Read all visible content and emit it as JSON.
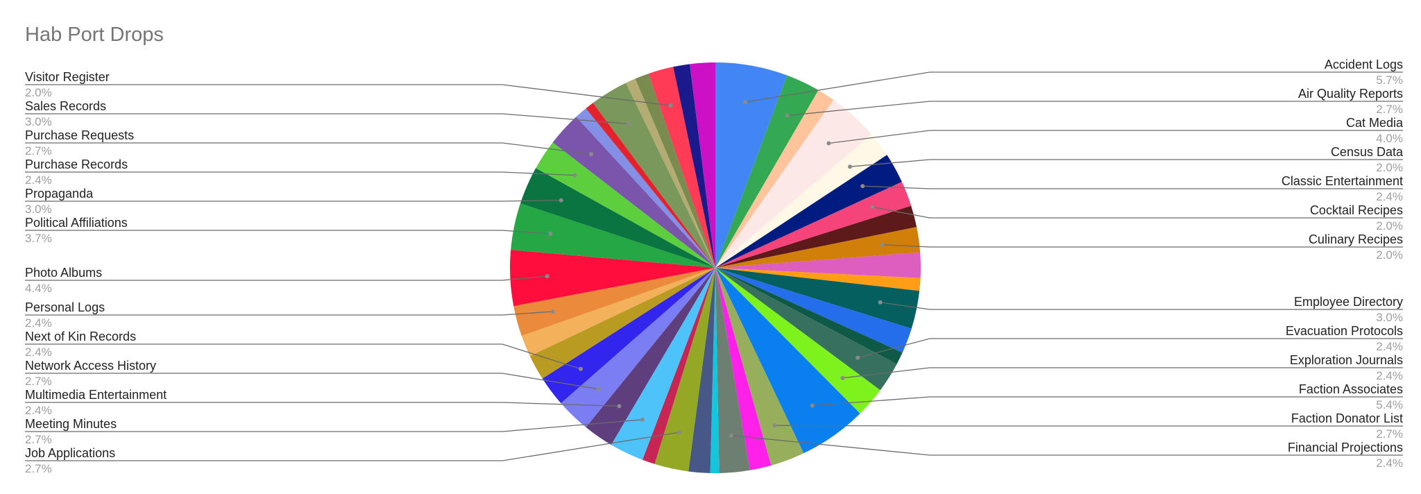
{
  "chart_data": {
    "type": "pie",
    "title": "Hab Port Drops",
    "legend": "leader-line labels on both sides",
    "slices": [
      {
        "label": "Accident Logs",
        "pct_label": "5.7%",
        "value": 5.7,
        "color": "#4285F4",
        "labeled": true
      },
      {
        "label": "Air Quality Reports",
        "pct_label": "2.7%",
        "value": 2.7,
        "color": "#34A853",
        "labeled": true
      },
      {
        "label": "",
        "pct_label": "",
        "value": 1.4,
        "color": "#FFC49B",
        "labeled": false
      },
      {
        "label": "Cat Media",
        "pct_label": "4.0%",
        "value": 4.0,
        "color": "#FDE8E8",
        "labeled": true
      },
      {
        "label": "Census Data",
        "pct_label": "2.0%",
        "value": 2.0,
        "color": "#FFF8E6",
        "labeled": true
      },
      {
        "label": "Classic Entertainment",
        "pct_label": "2.4%",
        "value": 2.4,
        "color": "#001C80",
        "labeled": true
      },
      {
        "label": "Cocktail Recipes",
        "pct_label": "2.0%",
        "value": 2.0,
        "color": "#F4447A",
        "labeled": true
      },
      {
        "label": "",
        "pct_label": "",
        "value": 1.7,
        "color": "#5E1A1A",
        "labeled": false
      },
      {
        "label": "Culinary Recipes",
        "pct_label": "2.0%",
        "value": 2.0,
        "color": "#D07F08",
        "labeled": true
      },
      {
        "label": "",
        "pct_label": "",
        "value": 2.0,
        "color": "#DE5EC0",
        "labeled": false
      },
      {
        "label": "",
        "pct_label": "",
        "value": 1.0,
        "color": "#FF9E16",
        "labeled": false
      },
      {
        "label": "Employee Directory",
        "pct_label": "3.0%",
        "value": 3.0,
        "color": "#055F5F",
        "labeled": true
      },
      {
        "label": "",
        "pct_label": "",
        "value": 2.0,
        "color": "#246DEB",
        "labeled": false
      },
      {
        "label": "",
        "pct_label": "",
        "value": 1.0,
        "color": "#0E5A47",
        "labeled": false
      },
      {
        "label": "Evacuation Protocols",
        "pct_label": "2.4%",
        "value": 2.4,
        "color": "#387060",
        "labeled": true
      },
      {
        "label": "Exploration Journals",
        "pct_label": "2.4%",
        "value": 2.4,
        "color": "#7DF21C",
        "labeled": true
      },
      {
        "label": "Faction Associates",
        "pct_label": "5.4%",
        "value": 5.4,
        "color": "#0A80F0",
        "labeled": true
      },
      {
        "label": "Faction Donator List",
        "pct_label": "2.7%",
        "value": 2.7,
        "color": "#97AE5C",
        "labeled": true
      },
      {
        "label": "",
        "pct_label": "",
        "value": 1.7,
        "color": "#FF20E9",
        "labeled": false
      },
      {
        "label": "Financial Projections",
        "pct_label": "2.4%",
        "value": 2.4,
        "color": "#6C7F70",
        "labeled": true
      },
      {
        "label": "",
        "pct_label": "",
        "value": 0.7,
        "color": "#13C6DE",
        "labeled": false
      },
      {
        "label": "",
        "pct_label": "",
        "value": 1.7,
        "color": "#465788",
        "labeled": false
      },
      {
        "label": "Job Applications",
        "pct_label": "2.7%",
        "value": 2.7,
        "color": "#95A826",
        "labeled": true
      },
      {
        "label": "",
        "pct_label": "",
        "value": 1.0,
        "color": "#C72655",
        "labeled": false
      },
      {
        "label": "Meeting Minutes",
        "pct_label": "2.7%",
        "value": 2.7,
        "color": "#4DC3FA",
        "labeled": true
      },
      {
        "label": "Multimedia Entertainment",
        "pct_label": "2.4%",
        "value": 2.4,
        "color": "#5E3E7C",
        "labeled": true
      },
      {
        "label": "Network Access History",
        "pct_label": "2.7%",
        "value": 2.7,
        "color": "#7B7EF3",
        "labeled": true
      },
      {
        "label": "Next of Kin Records",
        "pct_label": "2.4%",
        "value": 2.4,
        "color": "#3225EE",
        "labeled": true
      },
      {
        "label": "",
        "pct_label": "",
        "value": 2.0,
        "color": "#B89B20",
        "labeled": false
      },
      {
        "label": "",
        "pct_label": "",
        "value": 1.7,
        "color": "#F2B15A",
        "labeled": false
      },
      {
        "label": "Personal Logs",
        "pct_label": "2.4%",
        "value": 2.4,
        "color": "#EA8A3A",
        "labeled": true
      },
      {
        "label": "Photo Albums",
        "pct_label": "4.4%",
        "value": 4.4,
        "color": "#FF0D3D",
        "labeled": true
      },
      {
        "label": "Political Affiliations",
        "pct_label": "3.7%",
        "value": 3.7,
        "color": "#24A744",
        "labeled": true
      },
      {
        "label": "Propaganda",
        "pct_label": "3.0%",
        "value": 3.0,
        "color": "#0A7540",
        "labeled": true
      },
      {
        "label": "Purchase Records",
        "pct_label": "2.4%",
        "value": 2.4,
        "color": "#5DCF3E",
        "labeled": true
      },
      {
        "label": "Purchase Requests",
        "pct_label": "2.7%",
        "value": 2.7,
        "color": "#7B55AC",
        "labeled": true
      },
      {
        "label": "",
        "pct_label": "",
        "value": 1.0,
        "color": "#8390E6",
        "labeled": false
      },
      {
        "label": "",
        "pct_label": "",
        "value": 0.7,
        "color": "#E5222B",
        "labeled": false
      },
      {
        "label": "Sales Records",
        "pct_label": "3.0%",
        "value": 3.0,
        "color": "#7A975C",
        "labeled": true
      },
      {
        "label": "",
        "pct_label": "",
        "value": 0.8,
        "color": "#B5AC73",
        "labeled": false
      },
      {
        "label": "",
        "pct_label": "",
        "value": 1.1,
        "color": "#7A8B50",
        "labeled": false
      },
      {
        "label": "Visitor Register",
        "pct_label": "2.0%",
        "value": 2.0,
        "color": "#FF3B55",
        "labeled": true
      },
      {
        "label": "",
        "pct_label": "",
        "value": 1.3,
        "color": "#1A1A8C",
        "labeled": false
      },
      {
        "label": "",
        "pct_label": "",
        "value": 2.0,
        "color": "#CC10C6",
        "labeled": false
      }
    ]
  }
}
